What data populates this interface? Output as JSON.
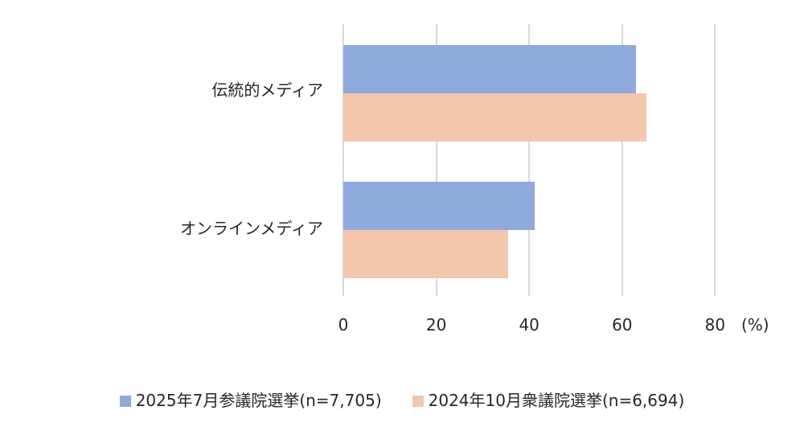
{
  "chart_data": {
    "type": "bar",
    "orientation": "horizontal",
    "title": "",
    "categories": [
      "伝統的メディア",
      "オンラインメディア"
    ],
    "series": [
      {
        "name": "2025年7月参議院選挙(n=7,705)",
        "color": "#8FAADC",
        "values": [
          62.9,
          41.2
        ]
      },
      {
        "name": "2024年10月衆議院選挙(n=6,694)",
        "color": "#F4C6AD",
        "values": [
          65.2,
          35.5
        ]
      }
    ],
    "xlabel": "(%)",
    "ylabel": "",
    "xlim": [
      0,
      80
    ],
    "xticks": [
      0,
      20,
      40,
      60,
      80
    ],
    "grid": true,
    "legend_position": "bottom"
  },
  "axis": {
    "ticks": [
      "0",
      "20",
      "40",
      "60",
      "80"
    ],
    "unit": "(%)"
  },
  "categories": {
    "c0": "伝統的メディア",
    "c1": "オンラインメディア"
  },
  "legend": {
    "s0": "2025年7月参議院選挙(n=7,705)",
    "s1": "2024年10月衆議院選挙(n=6,694)"
  }
}
